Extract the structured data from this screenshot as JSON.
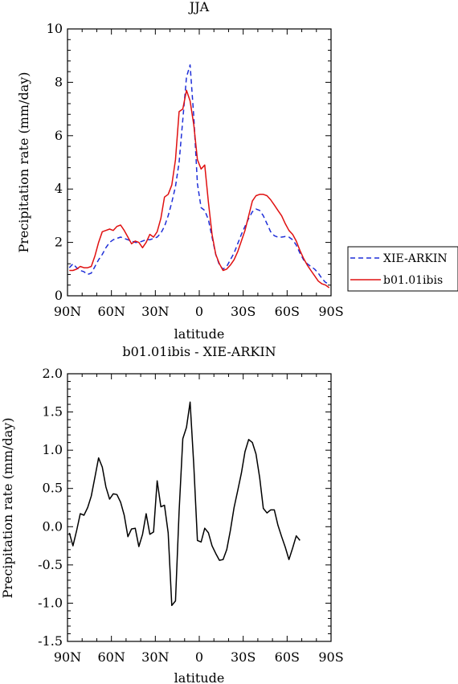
{
  "chart_data": [
    {
      "type": "line",
      "title": "JJA",
      "xlabel": "latitude",
      "ylabel": "Precipitation rate (mm/day)",
      "xlim": [
        90,
        -90
      ],
      "ylim": [
        0,
        10
      ],
      "x_ticks": [
        90,
        60,
        30,
        0,
        -30,
        -60,
        -90
      ],
      "x_tick_labels": [
        "90N",
        "60N",
        "30N",
        "0",
        "30S",
        "60S",
        "90S"
      ],
      "y_ticks": [
        0,
        2,
        4,
        6,
        8,
        10
      ],
      "y_tick_labels": [
        "0",
        "2",
        "4",
        "6",
        "8",
        "10"
      ],
      "legend_position": "outside-right",
      "series": [
        {
          "name": "XIE-ARKIN",
          "color": "#1f2fd8",
          "dash": "dashed",
          "points": [
            [
              88.75,
              1.05
            ],
            [
              86.25,
              1.2
            ],
            [
              83.75,
              1.05
            ],
            [
              81.25,
              0.95
            ],
            [
              78.75,
              0.9
            ],
            [
              76.25,
              0.8
            ],
            [
              73.75,
              0.85
            ],
            [
              71.25,
              1.1
            ],
            [
              68.75,
              1.35
            ],
            [
              66.25,
              1.55
            ],
            [
              63.75,
              1.8
            ],
            [
              61.25,
              2.0
            ],
            [
              58.75,
              2.1
            ],
            [
              56.25,
              2.15
            ],
            [
              53.75,
              2.2
            ],
            [
              51.25,
              2.15
            ],
            [
              48.75,
              2.1
            ],
            [
              46.25,
              2.05
            ],
            [
              43.75,
              2.0
            ],
            [
              41.25,
              2.0
            ],
            [
              38.75,
              2.05
            ],
            [
              36.25,
              2.1
            ],
            [
              33.75,
              2.1
            ],
            [
              31.25,
              2.15
            ],
            [
              28.75,
              2.2
            ],
            [
              26.25,
              2.35
            ],
            [
              23.75,
              2.6
            ],
            [
              21.25,
              3.0
            ],
            [
              18.75,
              3.5
            ],
            [
              16.25,
              4.1
            ],
            [
              13.75,
              5.0
            ],
            [
              11.25,
              6.6
            ],
            [
              8.75,
              8.2
            ],
            [
              6.25,
              8.65
            ],
            [
              3.75,
              6.7
            ],
            [
              1.25,
              4.2
            ],
            [
              -1.25,
              3.3
            ],
            [
              -3.75,
              3.2
            ],
            [
              -6.25,
              2.85
            ],
            [
              -8.75,
              2.2
            ],
            [
              -11.25,
              1.55
            ],
            [
              -13.75,
              1.15
            ],
            [
              -16.25,
              1.0
            ],
            [
              -18.75,
              1.1
            ],
            [
              -21.25,
              1.35
            ],
            [
              -23.75,
              1.6
            ],
            [
              -26.25,
              1.95
            ],
            [
              -28.75,
              2.3
            ],
            [
              -31.25,
              2.6
            ],
            [
              -33.75,
              2.9
            ],
            [
              -36.25,
              3.15
            ],
            [
              -38.75,
              3.25
            ],
            [
              -41.25,
              3.2
            ],
            [
              -43.75,
              3.0
            ],
            [
              -46.25,
              2.7
            ],
            [
              -48.75,
              2.4
            ],
            [
              -51.25,
              2.25
            ],
            [
              -53.75,
              2.2
            ],
            [
              -56.25,
              2.2
            ],
            [
              -58.75,
              2.22
            ],
            [
              -61.25,
              2.2
            ],
            [
              -63.75,
              2.1
            ],
            [
              -66.25,
              1.9
            ],
            [
              -68.75,
              1.6
            ],
            [
              -71.25,
              1.35
            ],
            [
              -73.75,
              1.2
            ],
            [
              -76.25,
              1.1
            ],
            [
              -78.75,
              1.0
            ],
            [
              -81.25,
              0.85
            ],
            [
              -83.75,
              0.65
            ],
            [
              -86.25,
              0.5
            ],
            [
              -88.75,
              0.45
            ]
          ]
        },
        {
          "name": "b01.01ibis",
          "color": "#e01010",
          "dash": "solid",
          "points": [
            [
              88.75,
              0.95
            ],
            [
              86.25,
              0.95
            ],
            [
              83.75,
              1.0
            ],
            [
              81.25,
              1.1
            ],
            [
              78.75,
              1.05
            ],
            [
              76.25,
              1.05
            ],
            [
              73.75,
              1.1
            ],
            [
              71.25,
              1.5
            ],
            [
              68.75,
              2.0
            ],
            [
              66.25,
              2.4
            ],
            [
              63.75,
              2.45
            ],
            [
              61.25,
              2.5
            ],
            [
              58.75,
              2.45
            ],
            [
              56.25,
              2.6
            ],
            [
              53.75,
              2.65
            ],
            [
              51.25,
              2.45
            ],
            [
              48.75,
              2.2
            ],
            [
              46.25,
              1.95
            ],
            [
              43.75,
              2.05
            ],
            [
              41.25,
              2.0
            ],
            [
              38.75,
              1.8
            ],
            [
              36.25,
              2.0
            ],
            [
              33.75,
              2.3
            ],
            [
              31.25,
              2.2
            ],
            [
              28.75,
              2.4
            ],
            [
              26.25,
              2.9
            ],
            [
              23.75,
              3.7
            ],
            [
              21.25,
              3.8
            ],
            [
              18.75,
              4.15
            ],
            [
              16.25,
              5.1
            ],
            [
              13.75,
              6.9
            ],
            [
              11.25,
              7.0
            ],
            [
              8.75,
              7.7
            ],
            [
              6.25,
              7.3
            ],
            [
              3.75,
              6.4
            ],
            [
              1.25,
              5.1
            ],
            [
              -1.25,
              4.75
            ],
            [
              -3.75,
              4.9
            ],
            [
              -6.25,
              3.5
            ],
            [
              -8.75,
              2.3
            ],
            [
              -11.25,
              1.55
            ],
            [
              -13.75,
              1.2
            ],
            [
              -16.25,
              0.95
            ],
            [
              -18.75,
              1.0
            ],
            [
              -21.25,
              1.15
            ],
            [
              -23.75,
              1.35
            ],
            [
              -26.25,
              1.65
            ],
            [
              -28.75,
              2.05
            ],
            [
              -31.25,
              2.45
            ],
            [
              -33.75,
              3.0
            ],
            [
              -36.25,
              3.55
            ],
            [
              -38.75,
              3.75
            ],
            [
              -41.25,
              3.8
            ],
            [
              -43.75,
              3.8
            ],
            [
              -46.25,
              3.75
            ],
            [
              -48.75,
              3.6
            ],
            [
              -51.25,
              3.4
            ],
            [
              -53.75,
              3.2
            ],
            [
              -56.25,
              3.0
            ],
            [
              -58.75,
              2.7
            ],
            [
              -61.25,
              2.45
            ],
            [
              -63.75,
              2.3
            ],
            [
              -66.25,
              2.05
            ],
            [
              -68.75,
              1.7
            ],
            [
              -71.25,
              1.4
            ],
            [
              -73.75,
              1.15
            ],
            [
              -76.25,
              0.95
            ],
            [
              -78.75,
              0.75
            ],
            [
              -81.25,
              0.55
            ],
            [
              -83.75,
              0.45
            ],
            [
              -86.25,
              0.4
            ],
            [
              -88.75,
              0.3
            ]
          ]
        }
      ]
    },
    {
      "type": "line",
      "title": "b01.01ibis - XIE-ARKIN",
      "xlabel": "latitude",
      "ylabel": "Precipitation rate (mm/day)",
      "xlim": [
        90,
        -90
      ],
      "ylim": [
        -1.5,
        2.0
      ],
      "x_ticks": [
        90,
        60,
        30,
        0,
        -30,
        -60,
        -90
      ],
      "x_tick_labels": [
        "90N",
        "60N",
        "30N",
        "0",
        "30S",
        "60S",
        "90S"
      ],
      "y_ticks": [
        -1.5,
        -1.0,
        -0.5,
        0.0,
        0.5,
        1.0,
        1.5,
        2.0
      ],
      "y_tick_labels": [
        "-1.5",
        "-1.0",
        "-0.5",
        "0.0",
        "0.5",
        "1.0",
        "1.5",
        "2.0"
      ],
      "series": [
        {
          "color": "#000000",
          "dash": "solid",
          "points": [
            [
              88.75,
              -0.08
            ],
            [
              86.25,
              -0.25
            ],
            [
              83.75,
              -0.05
            ],
            [
              81.25,
              0.17
            ],
            [
              78.75,
              0.15
            ],
            [
              76.25,
              0.25
            ],
            [
              73.75,
              0.4
            ],
            [
              71.25,
              0.65
            ],
            [
              68.75,
              0.9
            ],
            [
              66.25,
              0.78
            ],
            [
              63.75,
              0.52
            ],
            [
              61.25,
              0.36
            ],
            [
              58.75,
              0.43
            ],
            [
              56.25,
              0.42
            ],
            [
              53.75,
              0.32
            ],
            [
              51.25,
              0.15
            ],
            [
              48.75,
              -0.13
            ],
            [
              46.25,
              -0.03
            ],
            [
              43.75,
              -0.02
            ],
            [
              41.25,
              -0.26
            ],
            [
              38.75,
              -0.1
            ],
            [
              36.25,
              0.17
            ],
            [
              33.75,
              -0.1
            ],
            [
              31.25,
              -0.07
            ],
            [
              28.75,
              0.6
            ],
            [
              26.25,
              0.26
            ],
            [
              23.75,
              0.28
            ],
            [
              21.25,
              -0.08
            ],
            [
              18.75,
              -1.03
            ],
            [
              16.25,
              -0.97
            ],
            [
              13.75,
              0.2
            ],
            [
              11.25,
              1.15
            ],
            [
              8.75,
              1.3
            ],
            [
              6.25,
              1.63
            ],
            [
              3.75,
              0.8
            ],
            [
              1.25,
              -0.18
            ],
            [
              -1.25,
              -0.2
            ],
            [
              -3.75,
              -0.02
            ],
            [
              -6.25,
              -0.08
            ],
            [
              -8.75,
              -0.25
            ],
            [
              -11.25,
              -0.35
            ],
            [
              -13.75,
              -0.44
            ],
            [
              -16.25,
              -0.43
            ],
            [
              -18.75,
              -0.3
            ],
            [
              -21.25,
              -0.05
            ],
            [
              -23.75,
              0.25
            ],
            [
              -26.25,
              0.47
            ],
            [
              -28.75,
              0.7
            ],
            [
              -31.25,
              0.98
            ],
            [
              -33.75,
              1.14
            ],
            [
              -36.25,
              1.1
            ],
            [
              -38.75,
              0.95
            ],
            [
              -41.25,
              0.64
            ],
            [
              -43.75,
              0.24
            ],
            [
              -46.25,
              0.18
            ],
            [
              -48.75,
              0.22
            ],
            [
              -51.25,
              0.22
            ],
            [
              -53.75,
              0.02
            ],
            [
              -56.25,
              -0.13
            ],
            [
              -58.75,
              -0.27
            ],
            [
              -61.25,
              -0.43
            ],
            [
              -63.75,
              -0.28
            ],
            [
              -66.25,
              -0.12
            ],
            [
              -68.75,
              -0.18
            ]
          ]
        }
      ]
    }
  ]
}
